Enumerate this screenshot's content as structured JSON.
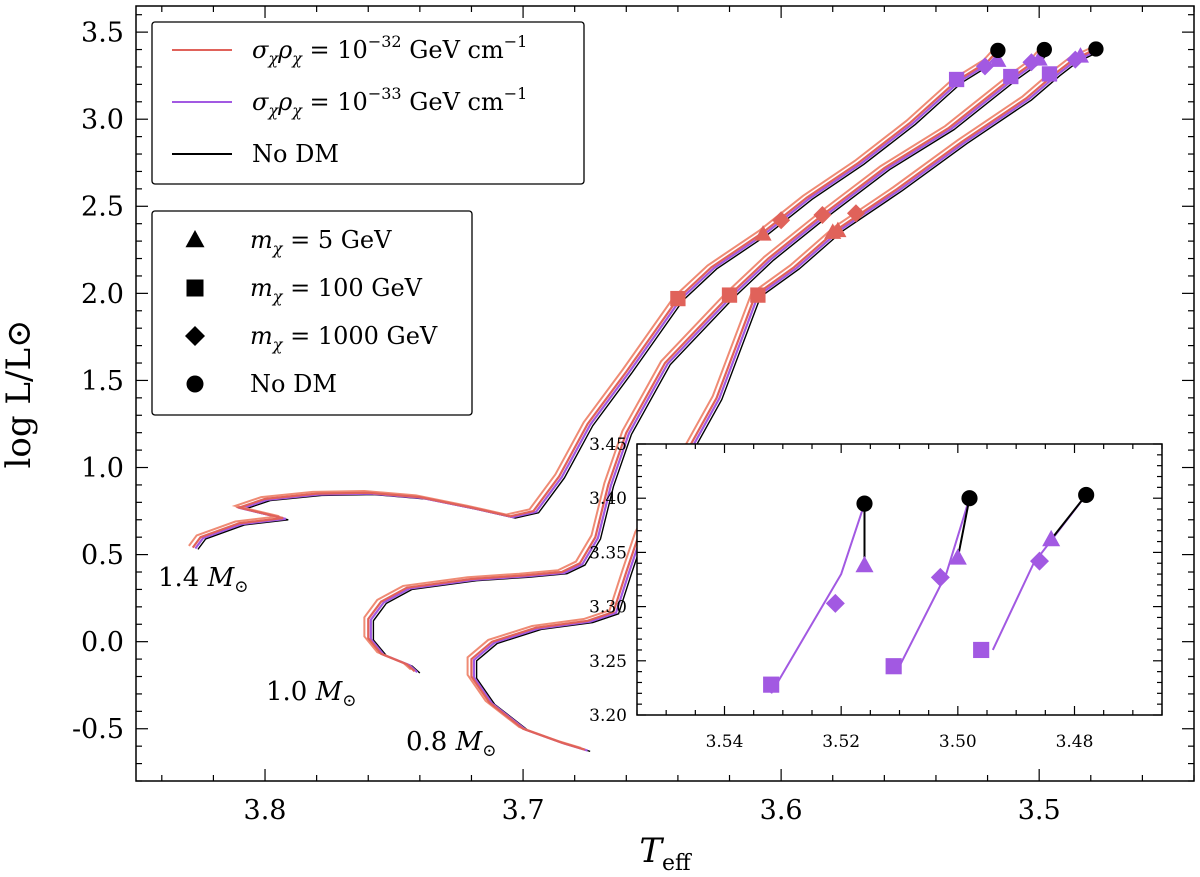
{
  "chart_data": {
    "type": "line",
    "title": "",
    "xlabel": "T",
    "xlabel_sub": "eff",
    "ylabel": "log L/L⊙",
    "xlim": [
      3.85,
      3.44
    ],
    "ylim": [
      -0.8,
      3.65
    ],
    "x_ticks": [
      "3.8",
      "3.7",
      "3.6",
      "3.5"
    ],
    "y_ticks": [
      "3.5",
      "3.0",
      "2.5",
      "2.0",
      "1.5",
      "1.0",
      "0.5",
      "0.0",
      "-0.5"
    ],
    "x_inverted": true,
    "colors": {
      "red": "#e0625a",
      "red_light": "#ef8b74",
      "purple": "#a259e2",
      "black": "#000000"
    },
    "series": [
      {
        "name": "1.4 M⊙",
        "label_prefix": "1.4 ",
        "label_sym": "M",
        "label_sub": "⊙",
        "track": [
          [
            3.828,
            0.54
          ],
          [
            3.825,
            0.6
          ],
          [
            3.81,
            0.68
          ],
          [
            3.793,
            0.71
          ],
          [
            3.81,
            0.77
          ],
          [
            3.8,
            0.82
          ],
          [
            3.78,
            0.85
          ],
          [
            3.76,
            0.855
          ],
          [
            3.74,
            0.83
          ],
          [
            3.72,
            0.77
          ],
          [
            3.705,
            0.72
          ],
          [
            3.696,
            0.75
          ],
          [
            3.686,
            0.95
          ],
          [
            3.675,
            1.25
          ],
          [
            3.66,
            1.55
          ],
          [
            3.64,
            1.97
          ],
          [
            3.627,
            2.15
          ],
          [
            3.607,
            2.35
          ],
          [
            3.59,
            2.55
          ],
          [
            3.57,
            2.75
          ],
          [
            3.55,
            2.98
          ],
          [
            3.532,
            3.22
          ],
          [
            3.52,
            3.33
          ],
          [
            3.516,
            3.395
          ]
        ],
        "markers": {
          "red_triangle": [
            3.607,
            2.34
          ],
          "red_square": [
            3.64,
            1.97
          ],
          "red_diamond": [
            3.6,
            2.42
          ],
          "purple_triangle": [
            3.516,
            3.338
          ],
          "purple_square": [
            3.532,
            3.228
          ],
          "purple_diamond": [
            3.521,
            3.303
          ],
          "black_circle": [
            3.516,
            3.395
          ]
        }
      },
      {
        "name": "1.0 M⊙",
        "label_prefix": "1.0 ",
        "label_sym": "M",
        "label_sub": "⊙",
        "track": [
          [
            3.742,
            -0.17
          ],
          [
            3.745,
            -0.13
          ],
          [
            3.755,
            -0.07
          ],
          [
            3.76,
            0.02
          ],
          [
            3.76,
            0.13
          ],
          [
            3.755,
            0.23
          ],
          [
            3.745,
            0.31
          ],
          [
            3.72,
            0.36
          ],
          [
            3.7,
            0.38
          ],
          [
            3.685,
            0.4
          ],
          [
            3.678,
            0.45
          ],
          [
            3.672,
            0.6
          ],
          [
            3.667,
            0.9
          ],
          [
            3.66,
            1.2
          ],
          [
            3.645,
            1.6
          ],
          [
            3.62,
            1.99
          ],
          [
            3.605,
            2.2
          ],
          [
            3.584,
            2.45
          ],
          [
            3.56,
            2.72
          ],
          [
            3.535,
            2.95
          ],
          [
            3.51,
            3.245
          ],
          [
            3.502,
            3.33
          ],
          [
            3.498,
            3.4
          ]
        ],
        "markers": {
          "red_triangle": [
            3.58,
            2.35
          ],
          "red_square": [
            3.62,
            1.99
          ],
          "red_diamond": [
            3.584,
            2.45
          ],
          "purple_triangle": [
            3.5,
            3.345
          ],
          "purple_square": [
            3.511,
            3.245
          ],
          "purple_diamond": [
            3.503,
            3.327
          ],
          "black_circle": [
            3.498,
            3.4
          ]
        }
      },
      {
        "name": "0.8 M⊙",
        "label_prefix": "0.8 ",
        "label_sym": "M",
        "label_sub": "⊙",
        "track": [
          [
            3.676,
            -0.62
          ],
          [
            3.685,
            -0.58
          ],
          [
            3.7,
            -0.5
          ],
          [
            3.713,
            -0.35
          ],
          [
            3.72,
            -0.2
          ],
          [
            3.72,
            -0.1
          ],
          [
            3.712,
            0.0
          ],
          [
            3.695,
            0.08
          ],
          [
            3.675,
            0.12
          ],
          [
            3.665,
            0.17
          ],
          [
            3.66,
            0.4
          ],
          [
            3.655,
            0.62
          ],
          [
            3.64,
            1.0
          ],
          [
            3.625,
            1.4
          ],
          [
            3.61,
            1.99
          ],
          [
            3.595,
            2.15
          ],
          [
            3.578,
            2.37
          ],
          [
            3.555,
            2.6
          ],
          [
            3.53,
            2.87
          ],
          [
            3.505,
            3.12
          ],
          [
            3.494,
            3.26
          ],
          [
            3.487,
            3.34
          ],
          [
            3.478,
            3.403
          ]
        ],
        "markers": {
          "red_triangle": [
            3.578,
            2.36
          ],
          "red_square": [
            3.609,
            1.99
          ],
          "red_diamond": [
            3.571,
            2.46
          ],
          "purple_triangle": [
            3.484,
            3.362
          ],
          "purple_square": [
            3.496,
            3.26
          ],
          "purple_diamond": [
            3.486,
            3.342
          ],
          "black_circle": [
            3.478,
            3.403
          ]
        }
      }
    ],
    "inset": {
      "xlim": [
        3.555,
        3.465
      ],
      "ylim": [
        3.2,
        3.45
      ],
      "x_ticks": [
        "3.54",
        "3.52",
        "3.50",
        "3.48"
      ],
      "y_ticks": [
        "3.45",
        "3.40",
        "3.35",
        "3.30",
        "3.25",
        "3.20"
      ]
    },
    "legend_lines": [
      {
        "prefix": "σ",
        "sub1": "χ",
        "mid": "ρ",
        "sub2": "χ",
        "eq": " = 10",
        "exp": "−32",
        "unit": " GeV cm",
        "unit_exp": "−1",
        "color_key": "red"
      },
      {
        "prefix": "σ",
        "sub1": "χ",
        "mid": "ρ",
        "sub2": "χ",
        "eq": " = 10",
        "exp": "−33",
        "unit": " GeV cm",
        "unit_exp": "−1",
        "color_key": "purple"
      },
      {
        "text": "No DM",
        "color_key": "black"
      }
    ],
    "legend_markers": [
      {
        "shape": "triangle",
        "sym": "m",
        "sub": "χ",
        "value": " = 5 GeV"
      },
      {
        "shape": "square",
        "sym": "m",
        "sub": "χ",
        "value": " = 100 GeV"
      },
      {
        "shape": "diamond",
        "sym": "m",
        "sub": "χ",
        "value": " = 1000 GeV"
      },
      {
        "shape": "circle",
        "text": "No DM"
      }
    ]
  }
}
